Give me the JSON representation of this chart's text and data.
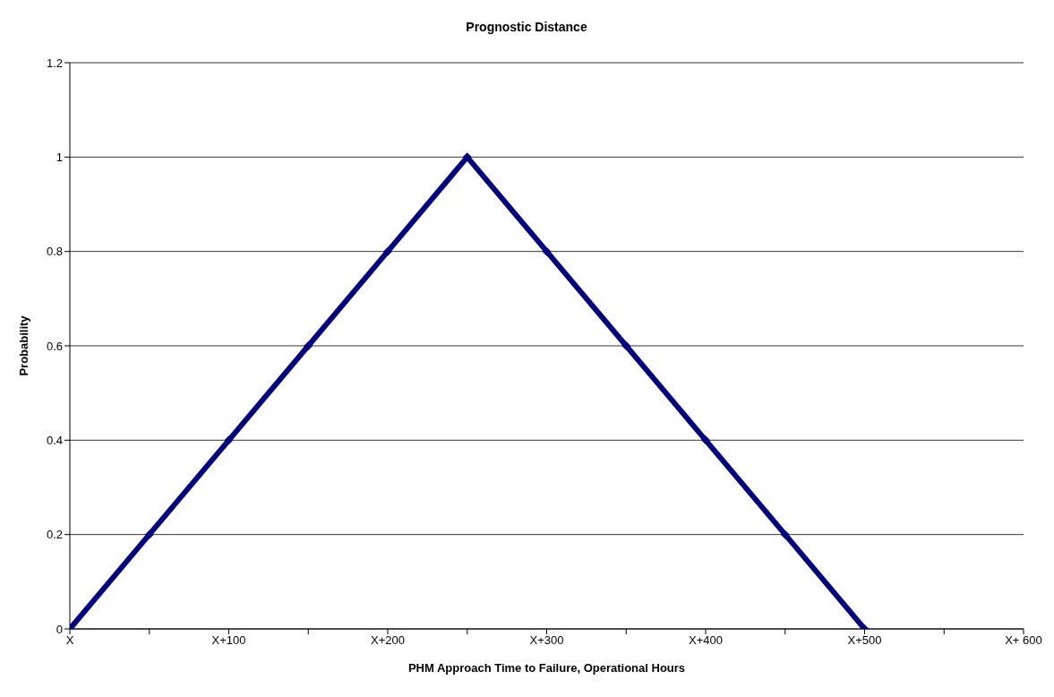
{
  "chart_data": {
    "type": "line",
    "title": "Prognostic Distance",
    "xlabel": "PHM Approach Time to Failure, Operational Hours",
    "ylabel": "Probability",
    "categories": [
      "X",
      null,
      "X+100",
      null,
      "X+200",
      null,
      "X+300",
      null,
      "X+400",
      null,
      "X+500",
      null,
      "X+ 600"
    ],
    "series": [
      {
        "color": "#000080",
        "values": [
          0,
          0.2,
          0.4,
          0.6,
          0.8,
          1,
          0.8,
          0.6,
          0.4,
          0.2,
          0,
          null,
          null
        ]
      }
    ],
    "ylim": [
      0,
      1.2
    ],
    "yticks": [
      0,
      0.2,
      0.4,
      0.6,
      0.8,
      1,
      1.2
    ],
    "grid": "y",
    "legend": false,
    "marker": "diamond",
    "line_style": "solid"
  }
}
